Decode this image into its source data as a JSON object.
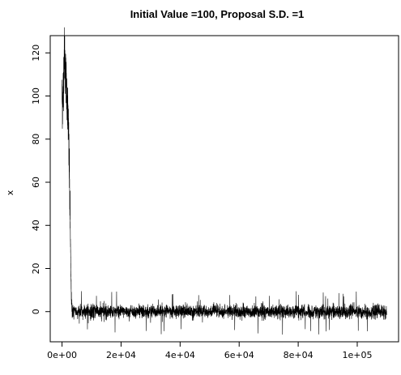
{
  "chart_data": {
    "type": "line",
    "title": "Initial Value =100, Proposal S.D. =1",
    "xlabel": "",
    "ylabel": "x",
    "xlim": [
      -4000,
      114000
    ],
    "ylim": [
      -14,
      128
    ],
    "x_ticks": [
      0,
      20000,
      40000,
      60000,
      80000,
      100000
    ],
    "x_tick_labels": [
      "0e+00",
      "2e+04",
      "4e+04",
      "6e+04",
      "8e+04",
      "1e+05"
    ],
    "y_ticks": [
      0,
      20,
      40,
      60,
      80,
      100,
      120
    ],
    "y_tick_labels": [
      "0",
      "20",
      "40",
      "60",
      "80",
      "100",
      "120"
    ],
    "grid": false,
    "legend": "none",
    "n_iterations": 110000,
    "series": [
      {
        "values": {
          "burn_in_x": [
            0,
            200,
            500,
            800,
            1100,
            1500,
            1900,
            2200,
            2500,
            2800,
            3000,
            3200,
            3500
          ],
          "burn_in_y": [
            100,
            95,
            108,
            122,
            113,
            104,
            96,
            84,
            62,
            38,
            18,
            4,
            0
          ],
          "stationary_level": 0,
          "stationary_sd": 1.6,
          "stationary_min": -11,
          "stationary_max": 9.5
        },
        "color": "#000000"
      }
    ]
  }
}
